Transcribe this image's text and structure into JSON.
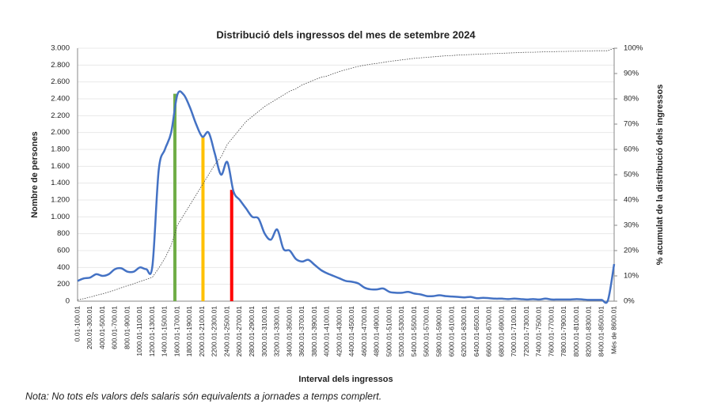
{
  "chart_data": {
    "type": "line",
    "title": "Distribució dels ingressos del mes de setembre  2024",
    "x_label": "Interval dels ingressos",
    "y_label": "Nombre de persones",
    "y2_label": "% acumulat de la distribució dels ingressos",
    "note": "Nota: No tots els valors dels salaris són equivalents a jornades a temps complert.",
    "categories": [
      "0.01-100.01",
      null,
      "200.01-300.01",
      null,
      "400.01-500.01",
      null,
      "600.01-700.01",
      null,
      "800.01-900.01",
      null,
      "1000.01-1100.01",
      null,
      "1200.01-1300.01",
      null,
      "1400.01-1500.01",
      null,
      "1600.01-1700.01",
      null,
      "1800.01-1900.01",
      null,
      "2000.01-2100.01",
      null,
      "2200.01-2300.01",
      null,
      "2400.01-2500.01",
      null,
      "2600.01-2700.01",
      null,
      "2800.01-2900.01",
      null,
      "3000.01-3100.01",
      null,
      "3200.01-3300.01",
      null,
      "3400.01-3500.01",
      null,
      "3600.01-3700.01",
      null,
      "3800.01-3900.01",
      null,
      "4000.01-4100.01",
      null,
      "4200.01-4300.01",
      null,
      "4400.01-4500.01",
      null,
      "4600.01-4700.01",
      null,
      "4800.01-4900.01",
      null,
      "5000.01-5100.01",
      null,
      "5200.01-5300.01",
      null,
      "5400.01-5500.01",
      null,
      "5600.01-5700.01",
      null,
      "5800.01-5900.01",
      null,
      "6000.01-6100.01",
      null,
      "6200.01-6300.01",
      null,
      "6400.01-6500.01",
      null,
      "6600.01-6700.01",
      null,
      "6800.01-6900.01",
      null,
      "7000.01-7100.01",
      null,
      "7200.01-7300.01",
      null,
      "7400.01-7500.01",
      null,
      "7600.01-7700.01",
      null,
      "7800.01-7900.01",
      null,
      "8000.01-8100.01",
      null,
      "8200.01-8300.01",
      null,
      "8400.01-8500.01",
      null,
      "Més de 8600.01"
    ],
    "series": [
      {
        "name": "Nombre de persones",
        "color": "#4472c4",
        "values": [
          240,
          270,
          280,
          320,
          300,
          320,
          380,
          390,
          350,
          350,
          400,
          380,
          420,
          1550,
          1800,
          2000,
          2450,
          2450,
          2300,
          2100,
          1950,
          2000,
          1750,
          1500,
          1650,
          1300,
          1200,
          1100,
          1000,
          980,
          800,
          730,
          850,
          620,
          600,
          500,
          470,
          490,
          430,
          370,
          330,
          300,
          270,
          240,
          230,
          210,
          160,
          140,
          140,
          150,
          110,
          100,
          100,
          110,
          90,
          80,
          60,
          60,
          70,
          60,
          55,
          50,
          45,
          50,
          35,
          40,
          35,
          30,
          30,
          25,
          30,
          25,
          20,
          25,
          20,
          30,
          20,
          20,
          20,
          20,
          25,
          20,
          15,
          15,
          15,
          10,
          440
        ]
      },
      {
        "name": "% acumulat",
        "color": "#444444",
        "axis": "y2",
        "values": [
          0.5,
          1,
          1.6,
          2.3,
          2.9,
          3.6,
          4.4,
          5.3,
          6.1,
          6.9,
          7.8,
          8.6,
          9.5,
          13,
          17,
          22,
          30,
          34,
          38,
          42,
          46,
          50,
          54,
          57,
          62,
          65,
          68,
          71,
          73,
          75,
          77,
          78.5,
          80,
          81.5,
          83,
          84,
          85.5,
          86.5,
          87.5,
          88.5,
          89,
          90,
          90.8,
          91.5,
          92.2,
          92.8,
          93.3,
          93.7,
          94,
          94.4,
          94.8,
          95.1,
          95.4,
          95.7,
          96,
          96.2,
          96.4,
          96.6,
          96.8,
          97,
          97.1,
          97.3,
          97.4,
          97.5,
          97.6,
          97.7,
          97.8,
          97.9,
          98,
          98.1,
          98.2,
          98.3,
          98.4,
          98.4,
          98.5,
          98.6,
          98.6,
          98.7,
          98.7,
          98.8,
          98.8,
          98.9,
          98.9,
          99,
          99,
          99,
          100
        ]
      }
    ],
    "vertical_bars": [
      {
        "color": "#70ad47",
        "position": 15.6,
        "value": 2460
      },
      {
        "color": "#ffc000",
        "position": 20.1,
        "value": 1940
      },
      {
        "color": "#ff0000",
        "position": 24.7,
        "value": 1320
      }
    ],
    "ylim": [
      0,
      3000
    ],
    "yticks": [
      0,
      200,
      400,
      600,
      800,
      {
        "value": 1000,
        "label": "1.000"
      },
      {
        "value": 1200,
        "label": "1.200"
      },
      {
        "value": 1400,
        "label": "1.400"
      },
      {
        "value": 1600,
        "label": "1.600"
      },
      {
        "value": 1800,
        "label": "1.800"
      },
      {
        "value": 2000,
        "label": "2.000"
      },
      {
        "value": 2200,
        "label": "2.200"
      },
      {
        "value": 2400,
        "label": "2.400"
      },
      {
        "value": 2600,
        "label": "2.600"
      },
      {
        "value": 2800,
        "label": "2.800"
      },
      {
        "value": 3000,
        "label": "3.000"
      }
    ],
    "y2lim": [
      0,
      100
    ],
    "y2ticks": [
      {
        "value": 0,
        "label": "0%"
      },
      {
        "value": 10,
        "label": "10%"
      },
      {
        "value": 20,
        "label": "20%"
      },
      {
        "value": 30,
        "label": "30%"
      },
      {
        "value": 40,
        "label": "40%"
      },
      {
        "value": 50,
        "label": "50%"
      },
      {
        "value": 60,
        "label": "60%"
      },
      {
        "value": 70,
        "label": "70%"
      },
      {
        "value": 80,
        "label": "80%"
      },
      {
        "value": 90,
        "label": "90%"
      },
      {
        "value": 100,
        "label": "100%"
      }
    ],
    "grid": true
  }
}
